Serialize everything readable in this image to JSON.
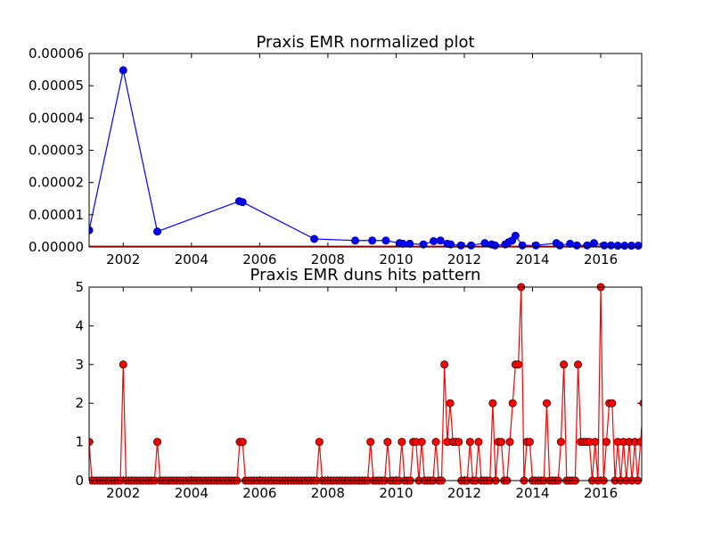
{
  "chart_data": [
    {
      "type": "line",
      "title": "Praxis EMR normalized plot",
      "xlabel": "",
      "ylabel": "",
      "xlim": [
        2001.0,
        2017.2
      ],
      "ylim": [
        0,
        6e-05
      ],
      "grid": false,
      "xticks": [
        2002,
        2004,
        2006,
        2008,
        2010,
        2012,
        2014,
        2016
      ],
      "xtick_labels": [
        "2002",
        "2004",
        "2006",
        "2008",
        "2010",
        "2012",
        "2014",
        "2016"
      ],
      "yticks": [
        0,
        1e-05,
        2e-05,
        3e-05,
        4e-05,
        5e-05,
        6e-05
      ],
      "ytick_labels": [
        "0.00000",
        "0.00001",
        "0.00002",
        "0.00003",
        "0.00004",
        "0.00005",
        "0.00006"
      ],
      "series": [
        {
          "color": "#0000ff",
          "marker": "circle",
          "points": [
            [
              2001.0,
              5.2e-06
            ],
            [
              2002.0,
              5.48e-05
            ],
            [
              2003.0,
              4.8e-06
            ],
            [
              2005.4,
              1.42e-05
            ],
            [
              2005.5,
              1.39e-05
            ],
            [
              2007.6,
              2.5e-06
            ],
            [
              2008.8,
              2e-06
            ],
            [
              2009.3,
              2e-06
            ],
            [
              2009.7,
              2e-06
            ],
            [
              2010.1,
              1.2e-06
            ],
            [
              2010.2,
              1e-06
            ],
            [
              2010.4,
              1e-06
            ],
            [
              2010.8,
              8e-07
            ],
            [
              2011.1,
              1.8e-06
            ],
            [
              2011.3,
              2e-06
            ],
            [
              2011.5,
              1e-06
            ],
            [
              2011.6,
              8e-07
            ],
            [
              2011.9,
              5e-07
            ],
            [
              2012.2,
              5e-07
            ],
            [
              2012.6,
              1.2e-06
            ],
            [
              2012.8,
              8e-07
            ],
            [
              2012.9,
              5e-07
            ],
            [
              2013.2,
              8e-07
            ],
            [
              2013.3,
              1.5e-06
            ],
            [
              2013.4,
              2e-06
            ],
            [
              2013.5,
              3.5e-06
            ],
            [
              2013.7,
              5e-07
            ],
            [
              2014.1,
              5e-07
            ],
            [
              2014.7,
              1.2e-06
            ],
            [
              2014.8,
              5e-07
            ],
            [
              2015.1,
              1e-06
            ],
            [
              2015.3,
              5e-07
            ],
            [
              2015.6,
              5e-07
            ],
            [
              2015.8,
              1.2e-06
            ],
            [
              2016.1,
              5e-07
            ],
            [
              2016.3,
              5e-07
            ],
            [
              2016.5,
              4e-07
            ],
            [
              2016.7,
              4e-07
            ],
            [
              2016.9,
              4e-07
            ],
            [
              2017.1,
              4e-07
            ]
          ]
        }
      ],
      "baseline": {
        "color": "#ff0000",
        "value": 2e-07,
        "x_from": 2001.0,
        "x_to": 2017.2
      }
    },
    {
      "type": "line",
      "title": "Praxis EMR duns hits pattern",
      "xlabel": "",
      "ylabel": "",
      "xlim": [
        2001.0,
        2017.2
      ],
      "ylim": [
        0,
        5
      ],
      "grid": false,
      "xticks": [
        2002,
        2004,
        2006,
        2008,
        2010,
        2012,
        2014,
        2016
      ],
      "xtick_labels": [
        "2002",
        "2004",
        "2006",
        "2008",
        "2010",
        "2012",
        "2014",
        "2016"
      ],
      "yticks": [
        0,
        1,
        2,
        3,
        4,
        5
      ],
      "ytick_labels": [
        "0",
        "1",
        "2",
        "3",
        "4",
        "5"
      ],
      "series": [
        {
          "color": "#ff0000",
          "marker": "circle",
          "marker_edge": "#000000",
          "monthly_start": 2001.0,
          "monthly_step": 0.0833333,
          "monthly_values": [
            1,
            0,
            0,
            0,
            0,
            0,
            0,
            0,
            0,
            0,
            0,
            0,
            3,
            0,
            0,
            0,
            0,
            0,
            0,
            0,
            0,
            0,
            0,
            0,
            1,
            0,
            0,
            0,
            0,
            0,
            0,
            0,
            0,
            0,
            0,
            0,
            0,
            0,
            0,
            0,
            0,
            0,
            0,
            0,
            0,
            0,
            0,
            0,
            0,
            0,
            0,
            0,
            0,
            1,
            1,
            0,
            0,
            0,
            0,
            0,
            0,
            0,
            0,
            0,
            0,
            0,
            0,
            0,
            0,
            0,
            0,
            0,
            0,
            0,
            0,
            0,
            0,
            0,
            0,
            0,
            0,
            1,
            0,
            0,
            0,
            0,
            0,
            0,
            0,
            0,
            0,
            0,
            0,
            0,
            0,
            0,
            0,
            0,
            0,
            1,
            0,
            0,
            0,
            0,
            0,
            1,
            0,
            0,
            0,
            0,
            1,
            0,
            0,
            0,
            1,
            1,
            0,
            1,
            0,
            0,
            0,
            0,
            1,
            0,
            0,
            3,
            1,
            2,
            1,
            1,
            1,
            0,
            0,
            0,
            1,
            0,
            0,
            1,
            0,
            0,
            0,
            0,
            2,
            0,
            1,
            1,
            0,
            0,
            1,
            2,
            3,
            3,
            5,
            0,
            1,
            1,
            0,
            0,
            0,
            0,
            0,
            2,
            0,
            0,
            0,
            0,
            1,
            3,
            0,
            0,
            0,
            0,
            3,
            1,
            1,
            1,
            1,
            0,
            1,
            0,
            5,
            0,
            1,
            2,
            2,
            0,
            1,
            0,
            1,
            0,
            1,
            0,
            1,
            0,
            1,
            2,
            1
          ]
        }
      ]
    }
  ]
}
